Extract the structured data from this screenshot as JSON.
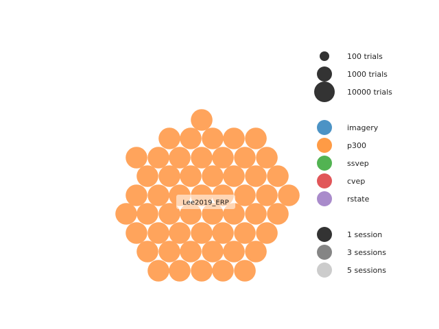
{
  "chart_data": {
    "type": "bubble",
    "title": "",
    "dataset": {
      "name": "Lee2019_ERP",
      "paradigm": "p300",
      "subjects": 54,
      "sessions": 1
    },
    "legend": {
      "placement": "right",
      "trials": [
        {
          "label": "100 trials",
          "trials": 100
        },
        {
          "label": "1000 trials",
          "trials": 1000
        },
        {
          "label": "10000 trials",
          "trials": 10000
        }
      ],
      "paradigms": [
        {
          "label": "imagery",
          "color": "#4c93c5"
        },
        {
          "label": "p300",
          "color": "#ff9b45"
        },
        {
          "label": "ssvep",
          "color": "#52b352"
        },
        {
          "label": "cvep",
          "color": "#e15659"
        },
        {
          "label": "rstate",
          "color": "#a98bcb"
        }
      ],
      "sessions": [
        {
          "label": "1 session",
          "color": "#333333"
        },
        {
          "label": "3 sessions",
          "color": "#858585"
        },
        {
          "label": "5 sessions",
          "color": "#cccccc"
        }
      ]
    },
    "bubble_color": "#ffa45c"
  }
}
